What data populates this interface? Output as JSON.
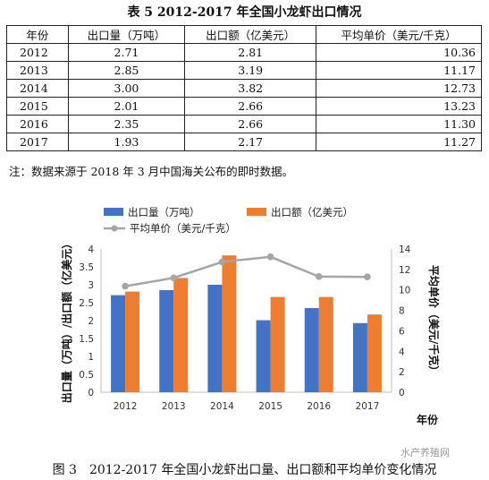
{
  "table": {
    "title": "表 5 2012-2017 年全国小龙虾出口情况",
    "headers": [
      "年份",
      "出口量（万吨）",
      "出口额（亿美元）",
      "平均单价（美元/千克）"
    ],
    "rows": [
      [
        "2012",
        "2.71",
        "2.81",
        "10.36"
      ],
      [
        "2013",
        "2.85",
        "3.19",
        "11.17"
      ],
      [
        "2014",
        "3.00",
        "3.82",
        "12.73"
      ],
      [
        "2015",
        "2.01",
        "2.66",
        "13.23"
      ],
      [
        "2016",
        "2.35",
        "2.66",
        "11.30"
      ],
      [
        "2017",
        "1.93",
        "2.17",
        "11.27"
      ]
    ]
  },
  "note": "注：数据来源于 2018 年 3 月中国海关公布的即时数据。",
  "caption": "图 3　2012-2017 年全国小龙虾出口量、出口额和平均单价变化情况",
  "watermark": "水产养殖网",
  "chart_data": {
    "type": "bar",
    "categories": [
      "2012",
      "2013",
      "2014",
      "2015",
      "2016",
      "2017"
    ],
    "series": [
      {
        "name": "出口量（万吨）",
        "kind": "bar",
        "axis": "left",
        "color": "#4472C4",
        "values": [
          2.71,
          2.85,
          3.0,
          2.01,
          2.35,
          1.93
        ]
      },
      {
        "name": "出口额（亿美元）",
        "kind": "bar",
        "axis": "left",
        "color": "#ED7D31",
        "values": [
          2.81,
          3.19,
          3.82,
          2.66,
          2.66,
          2.17
        ]
      },
      {
        "name": "平均单价（美元/千克）",
        "kind": "line",
        "axis": "right",
        "color": "#A5A5A5",
        "values": [
          10.36,
          11.17,
          12.73,
          13.23,
          11.3,
          11.27
        ]
      }
    ],
    "ylabel": "出口量（万吨）/出口额（亿美元）",
    "y2label": "平均单价（美元/千克）",
    "xlabel": "年份",
    "ylim": [
      0,
      4
    ],
    "y2lim": [
      0,
      14
    ],
    "yticks": [
      "0",
      "0.5",
      "1",
      "1.5",
      "2",
      "2.5",
      "3",
      "3.5",
      "4"
    ],
    "y2ticks": [
      "0",
      "2",
      "4",
      "6",
      "8",
      "10",
      "12",
      "14"
    ],
    "grid": false,
    "legend": "top"
  }
}
